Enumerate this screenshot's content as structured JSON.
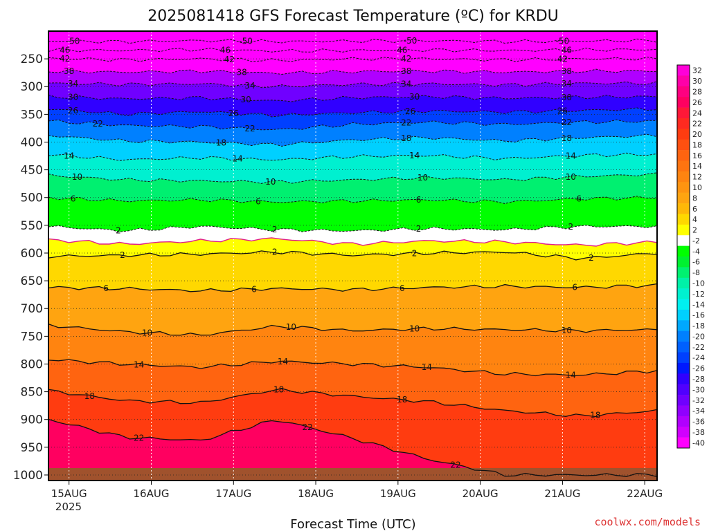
{
  "chart_data": {
    "type": "heatmap",
    "title": "2025081418 GFS Forecast Temperature (ºC) for KRDU",
    "xlabel": "Forecast Time (UTC)",
    "ylabel": "",
    "credit": "coolwx.com/models",
    "x_ticks": [
      "15AUG",
      "16AUG",
      "17AUG",
      "18AUG",
      "19AUG",
      "20AUG",
      "21AUG",
      "22AUG"
    ],
    "x_year": "2025",
    "x_range_days": [
      14.75,
      22.15
    ],
    "y_ticks": [
      250,
      300,
      350,
      400,
      450,
      500,
      550,
      600,
      650,
      700,
      750,
      800,
      850,
      900,
      950,
      1000
    ],
    "y_range_hPa": [
      200,
      1010
    ],
    "ground_level_hPa": 1000,
    "colorbar_labels": [
      "32",
      "30",
      "28",
      "26",
      "24",
      "22",
      "20",
      "18",
      "16",
      "14",
      "12",
      "10",
      "8",
      "6",
      "4",
      "2",
      "-2",
      "-4",
      "-6",
      "-8",
      "-10",
      "-12",
      "-14",
      "-16",
      "-18",
      "-20",
      "-22",
      "-24",
      "-26",
      "-28",
      "-30",
      "-32",
      "-34",
      "-36",
      "-38",
      "-40"
    ],
    "colorbar_colors": [
      "#ff00d8",
      "#ff00a8",
      "#ff0080",
      "#ff0060",
      "#ff1838",
      "#ff2a20",
      "#ff3c10",
      "#ff5010",
      "#ff6410",
      "#ff7410",
      "#ff8410",
      "#ff9410",
      "#ffa410",
      "#ffb808",
      "#ffd800",
      "#ffff00",
      "#ffffff",
      "#00ff00",
      "#00f030",
      "#00f070",
      "#00f0a8",
      "#00f0d0",
      "#00f0f0",
      "#00d0ff",
      "#00a8ff",
      "#0080ff",
      "#0060ff",
      "#0040ff",
      "#0018ff",
      "#3000ff",
      "#5000ff",
      "#7000ff",
      "#9000ff",
      "#b000ff",
      "#d000ff",
      "#ff00ff"
    ],
    "isotherms": [
      {
        "value": -50,
        "pressure": [
          218,
          219,
          217,
          219,
          218,
          217,
          219,
          218,
          217
        ],
        "labels": [
          {
            "x": 15.05,
            "text": "-50"
          },
          {
            "x": 17.15,
            "text": "-50"
          },
          {
            "x": 19.15,
            "text": "-50"
          },
          {
            "x": 21.0,
            "text": "-50"
          }
        ]
      },
      {
        "value": -46,
        "pressure": [
          234,
          235,
          233,
          236,
          235,
          234,
          235,
          234,
          233
        ],
        "labels": [
          {
            "x": 14.95,
            "text": "46"
          },
          {
            "x": 16.9,
            "text": "46"
          },
          {
            "x": 19.05,
            "text": "46"
          },
          {
            "x": 21.05,
            "text": "46"
          }
        ]
      },
      {
        "value": -42,
        "pressure": [
          249,
          252,
          250,
          253,
          250,
          250,
          252,
          250,
          250
        ],
        "labels": [
          {
            "x": 14.95,
            "text": "42"
          },
          {
            "x": 16.95,
            "text": "42"
          },
          {
            "x": 19.1,
            "text": "42"
          },
          {
            "x": 21.0,
            "text": "42"
          }
        ]
      },
      {
        "value": -38,
        "pressure": [
          272,
          274,
          272,
          276,
          273,
          272,
          274,
          272,
          272
        ],
        "labels": [
          {
            "x": 15.0,
            "text": "38"
          },
          {
            "x": 17.1,
            "text": "38"
          },
          {
            "x": 19.1,
            "text": "38"
          },
          {
            "x": 21.05,
            "text": "38"
          }
        ]
      },
      {
        "value": -34,
        "pressure": [
          294,
          296,
          295,
          300,
          296,
          295,
          297,
          294,
          294
        ],
        "labels": [
          {
            "x": 15.05,
            "text": "34"
          },
          {
            "x": 17.2,
            "text": "34"
          },
          {
            "x": 19.1,
            "text": "34"
          },
          {
            "x": 21.05,
            "text": "34"
          }
        ]
      },
      {
        "value": -30,
        "pressure": [
          318,
          322,
          320,
          326,
          320,
          318,
          321,
          319,
          318
        ],
        "labels": [
          {
            "x": 15.05,
            "text": "30"
          },
          {
            "x": 17.15,
            "text": "30"
          },
          {
            "x": 19.2,
            "text": "30"
          },
          {
            "x": 21.05,
            "text": "30"
          }
        ]
      },
      {
        "value": -26,
        "pressure": [
          340,
          350,
          345,
          352,
          347,
          344,
          346,
          343,
          340
        ],
        "labels": [
          {
            "x": 15.05,
            "text": "26"
          },
          {
            "x": 17.0,
            "text": "26"
          },
          {
            "x": 19.15,
            "text": "26"
          },
          {
            "x": 21.0,
            "text": "26"
          }
        ]
      },
      {
        "value": -22,
        "pressure": [
          362,
          370,
          372,
          378,
          368,
          364,
          368,
          364,
          362
        ],
        "labels": [
          {
            "x": 15.35,
            "text": "22"
          },
          {
            "x": 17.2,
            "text": "22"
          },
          {
            "x": 19.1,
            "text": "22"
          },
          {
            "x": 21.05,
            "text": "22"
          }
        ]
      },
      {
        "value": -18,
        "pressure": [
          388,
          398,
          400,
          405,
          396,
          392,
          398,
          392,
          388
        ],
        "labels": [
          {
            "x": 16.85,
            "text": "18"
          },
          {
            "x": 19.1,
            "text": "18"
          },
          {
            "x": 21.05,
            "text": "18"
          }
        ]
      },
      {
        "value": -14,
        "pressure": [
          422,
          432,
          428,
          432,
          426,
          424,
          430,
          424,
          422
        ],
        "labels": [
          {
            "x": 15.0,
            "text": "14"
          },
          {
            "x": 17.05,
            "text": "14"
          },
          {
            "x": 19.2,
            "text": "14"
          },
          {
            "x": 21.1,
            "text": "14"
          }
        ]
      },
      {
        "value": -10,
        "pressure": [
          460,
          468,
          470,
          472,
          468,
          464,
          468,
          462,
          458
        ],
        "labels": [
          {
            "x": 15.1,
            "text": "10"
          },
          {
            "x": 17.45,
            "text": "10"
          },
          {
            "x": 19.3,
            "text": "10"
          },
          {
            "x": 21.1,
            "text": "10"
          }
        ]
      },
      {
        "value": -6,
        "pressure": [
          500,
          506,
          504,
          508,
          506,
          504,
          508,
          502,
          500
        ],
        "labels": [
          {
            "x": 15.05,
            "text": "6"
          },
          {
            "x": 17.3,
            "text": "6"
          },
          {
            "x": 19.25,
            "text": "6"
          },
          {
            "x": 21.2,
            "text": "6"
          }
        ]
      },
      {
        "value": -2,
        "pressure": [
          552,
          560,
          552,
          558,
          560,
          556,
          558,
          552,
          552
        ],
        "labels": [
          {
            "x": 15.6,
            "text": "2"
          },
          {
            "x": 17.5,
            "text": "2"
          },
          {
            "x": 19.25,
            "text": "2"
          },
          {
            "x": 21.1,
            "text": "2"
          }
        ]
      },
      {
        "value": 0,
        "pressure": [
          576,
          584,
          578,
          574,
          584,
          578,
          580,
          586,
          580
        ],
        "labels": []
      },
      {
        "value": 2,
        "pressure": [
          606,
          604,
          602,
          598,
          604,
          600,
          598,
          610,
          600
        ],
        "labels": [
          {
            "x": 15.65,
            "text": "2"
          },
          {
            "x": 17.5,
            "text": "2"
          },
          {
            "x": 19.2,
            "text": "2"
          },
          {
            "x": 21.35,
            "text": "2"
          }
        ]
      },
      {
        "value": 6,
        "pressure": [
          662,
          664,
          668,
          664,
          666,
          662,
          660,
          662,
          658
        ],
        "labels": [
          {
            "x": 15.45,
            "text": "6"
          },
          {
            "x": 17.25,
            "text": "6"
          },
          {
            "x": 19.05,
            "text": "6"
          },
          {
            "x": 21.15,
            "text": "6"
          }
        ]
      },
      {
        "value": 10,
        "pressure": [
          730,
          742,
          748,
          732,
          740,
          736,
          738,
          740,
          738
        ],
        "labels": [
          {
            "x": 15.95,
            "text": "10"
          },
          {
            "x": 17.7,
            "text": "10"
          },
          {
            "x": 19.2,
            "text": "10"
          },
          {
            "x": 21.05,
            "text": "10"
          }
        ]
      },
      {
        "value": 14,
        "pressure": [
          792,
          800,
          806,
          795,
          800,
          806,
          818,
          820,
          812
        ],
        "labels": [
          {
            "x": 15.85,
            "text": "14"
          },
          {
            "x": 17.6,
            "text": "14"
          },
          {
            "x": 19.35,
            "text": "14"
          },
          {
            "x": 21.1,
            "text": "14"
          }
        ]
      },
      {
        "value": 18,
        "pressure": [
          848,
          866,
          870,
          846,
          858,
          868,
          884,
          894,
          884
        ],
        "labels": [
          {
            "x": 15.25,
            "text": "18"
          },
          {
            "x": 17.55,
            "text": "18"
          },
          {
            "x": 19.05,
            "text": "18"
          },
          {
            "x": 21.4,
            "text": "18"
          }
        ]
      },
      {
        "value": 22,
        "pressure": [
          900,
          932,
          938,
          900,
          934,
          972,
          1000,
          1000,
          1000
        ],
        "labels": [
          {
            "x": 15.85,
            "text": "22"
          },
          {
            "x": 17.9,
            "text": "22"
          },
          {
            "x": 19.7,
            "text": "22"
          }
        ]
      }
    ]
  }
}
